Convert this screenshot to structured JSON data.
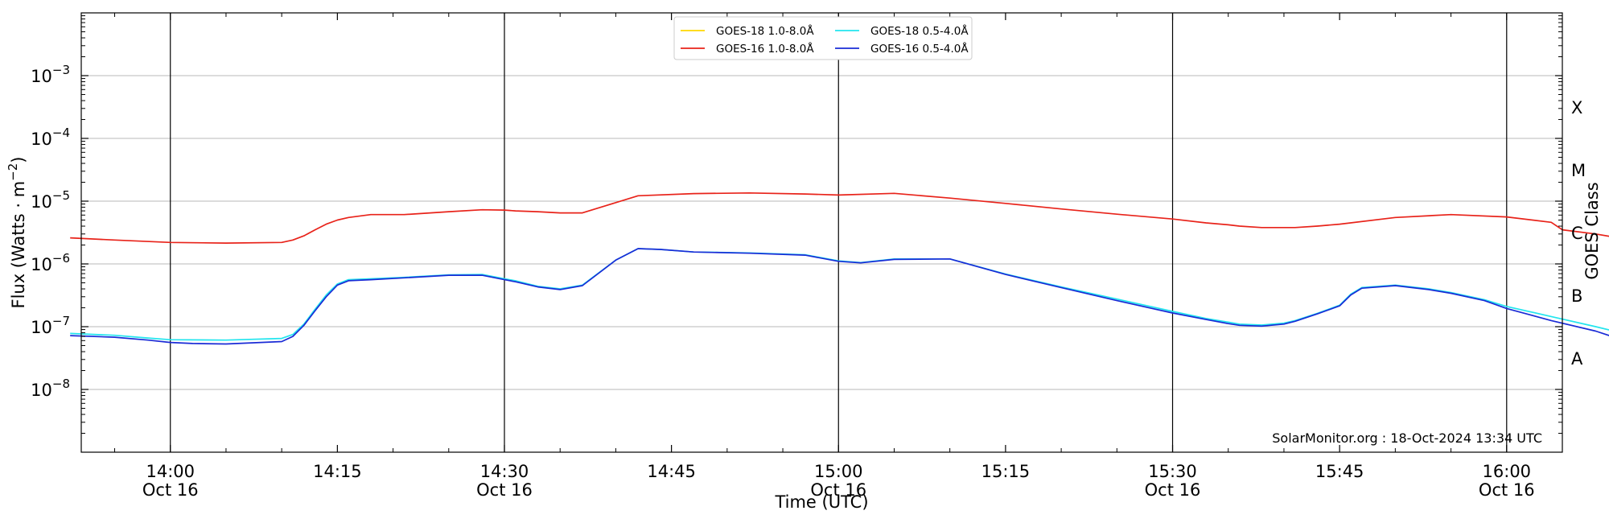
{
  "chart_data": {
    "type": "line",
    "xlabel": "Time (UTC)",
    "ylabel": "Flux (Watts · m⁻²)",
    "right_label": "GOES Class",
    "yscale": "log",
    "xlim": [
      "13:52",
      "16:05"
    ],
    "ylim": [
      1e-09,
      0.01
    ],
    "grid": "horizontal",
    "legend_position": "top-center",
    "footer": "SolarMonitor.org : 18-Oct-2024 13:34 UTC",
    "x_ticks": [
      {
        "time": "14:00",
        "main": "14:00",
        "sub": "Oct 16",
        "major": true
      },
      {
        "time": "14:15",
        "main": "14:15",
        "sub": "",
        "major": false
      },
      {
        "time": "14:30",
        "main": "14:30",
        "sub": "Oct 16",
        "major": true
      },
      {
        "time": "14:45",
        "main": "14:45",
        "sub": "",
        "major": false
      },
      {
        "time": "15:00",
        "main": "15:00",
        "sub": "Oct 16",
        "major": true
      },
      {
        "time": "15:15",
        "main": "15:15",
        "sub": "",
        "major": false
      },
      {
        "time": "15:30",
        "main": "15:30",
        "sub": "Oct 16",
        "major": true
      },
      {
        "time": "15:45",
        "main": "15:45",
        "sub": "",
        "major": false
      },
      {
        "time": "16:00",
        "main": "16:00",
        "sub": "Oct 16",
        "major": true
      }
    ],
    "y_ticks": [
      {
        "exp": -3,
        "label_base": "10",
        "label_exp": "−3"
      },
      {
        "exp": -4,
        "label_base": "10",
        "label_exp": "−4"
      },
      {
        "exp": -5,
        "label_base": "10",
        "label_exp": "−5"
      },
      {
        "exp": -6,
        "label_base": "10",
        "label_exp": "−6"
      },
      {
        "exp": -7,
        "label_base": "10",
        "label_exp": "−7"
      },
      {
        "exp": -8,
        "label_base": "10",
        "label_exp": "−8"
      }
    ],
    "goes_classes": [
      {
        "label": "X",
        "exp": -3.5
      },
      {
        "label": "M",
        "exp": -4.5
      },
      {
        "label": "C",
        "exp": -5.5
      },
      {
        "label": "B",
        "exp": -6.5
      },
      {
        "label": "A",
        "exp": -7.5
      }
    ],
    "series": [
      {
        "name": "GOES-18 1.0-8.0Å",
        "color": "#ffd700",
        "x": [],
        "y": []
      },
      {
        "name": "GOES-16 1.0-8.0Å",
        "color": "#e8231a",
        "x": [
          -9,
          -5,
          0,
          5,
          10,
          11,
          12,
          13,
          14,
          15,
          16,
          18,
          21,
          25,
          28,
          30,
          31,
          33,
          35,
          37,
          42,
          47,
          52,
          57,
          60,
          65,
          70,
          75,
          80,
          85,
          90,
          93,
          95,
          96,
          98,
          101,
          103,
          105,
          110,
          115,
          120,
          124,
          125,
          128,
          130,
          133
        ],
        "y": [
          2.6e-06,
          2.4e-06,
          2.2e-06,
          2.15e-06,
          2.2e-06,
          2.4e-06,
          2.8e-06,
          3.5e-06,
          4.3e-06,
          5e-06,
          5.5e-06,
          6.1e-06,
          6.1e-06,
          6.8e-06,
          7.3e-06,
          7.2e-06,
          7e-06,
          6.8e-06,
          6.5e-06,
          6.5e-06,
          1.22e-05,
          1.32e-05,
          1.35e-05,
          1.3e-05,
          1.25e-05,
          1.33e-05,
          1.12e-05,
          9.2e-06,
          7.5e-06,
          6.2e-06,
          5.2e-06,
          4.5e-06,
          4.2e-06,
          4e-06,
          3.8e-06,
          3.8e-06,
          4e-06,
          4.3e-06,
          5.5e-06,
          6.1e-06,
          5.6e-06,
          4.6e-06,
          3.5e-06,
          3e-06,
          2.6e-06,
          2.5e-06
        ]
      },
      {
        "name": "GOES-18 0.5-4.0Å",
        "color": "#22e5ee",
        "x": [
          -9,
          -5,
          -2,
          0,
          5,
          10,
          11,
          12,
          13,
          14,
          15,
          16,
          18,
          21,
          25,
          28,
          30,
          31,
          33,
          35,
          37,
          40,
          42,
          44,
          47,
          52,
          57,
          60,
          62,
          65,
          70,
          75,
          80,
          85,
          90,
          93,
          95,
          96,
          98,
          100,
          101,
          103,
          105,
          106,
          107,
          110,
          113,
          115,
          118,
          120,
          124,
          128,
          130,
          133
        ],
        "y": [
          7.8e-08,
          7.3e-08,
          6.6e-08,
          6.2e-08,
          6.1e-08,
          6.5e-08,
          7.5e-08,
          1.1e-07,
          1.9e-07,
          3.2e-07,
          4.8e-07,
          5.6e-07,
          5.8e-07,
          6.1e-07,
          6.7e-07,
          6.8e-07,
          5.8e-07,
          5.4e-07,
          4.4e-07,
          4e-07,
          4.6e-07,
          1.15e-06,
          1.75e-06,
          1.7e-06,
          1.55e-06,
          1.5e-06,
          1.4e-06,
          1.12e-06,
          1.05e-06,
          1.2e-06,
          1.2e-06,
          6.9e-07,
          4.3e-07,
          2.75e-07,
          1.75e-07,
          1.35e-07,
          1.18e-07,
          1.1e-07,
          1.06e-07,
          1.14e-07,
          1.25e-07,
          1.63e-07,
          2.2e-07,
          3.3e-07,
          4.2e-07,
          4.6e-07,
          4e-07,
          3.5e-07,
          2.7e-07,
          2.1e-07,
          1.45e-07,
          1e-07,
          8.2e-08,
          6.8e-08
        ]
      },
      {
        "name": "GOES-16 0.5-4.0Å",
        "color": "#1a2bd6",
        "x": [
          -9,
          -5,
          -2,
          0,
          2,
          5,
          10,
          11,
          12,
          13,
          14,
          15,
          16,
          18,
          21,
          25,
          28,
          30,
          31,
          33,
          35,
          37,
          40,
          42,
          44,
          47,
          52,
          57,
          60,
          62,
          65,
          70,
          75,
          80,
          85,
          90,
          93,
          95,
          96,
          98,
          100,
          101,
          103,
          105,
          106,
          107,
          110,
          113,
          115,
          118,
          120,
          124,
          128,
          130,
          133
        ],
        "y": [
          7.2e-08,
          6.8e-08,
          6.1e-08,
          5.6e-08,
          5.4e-08,
          5.3e-08,
          5.8e-08,
          7e-08,
          1.05e-07,
          1.8e-07,
          3e-07,
          4.6e-07,
          5.4e-07,
          5.6e-07,
          6e-07,
          6.6e-07,
          6.6e-07,
          5.6e-07,
          5.2e-07,
          4.3e-07,
          3.9e-07,
          4.5e-07,
          1.15e-06,
          1.75e-06,
          1.7e-06,
          1.55e-06,
          1.48e-06,
          1.38e-06,
          1.1e-06,
          1.04e-06,
          1.18e-06,
          1.2e-06,
          6.8e-07,
          4.2e-07,
          2.6e-07,
          1.65e-07,
          1.3e-07,
          1.12e-07,
          1.05e-07,
          1.02e-07,
          1.1e-07,
          1.22e-07,
          1.6e-07,
          2.15e-07,
          3.2e-07,
          4.1e-07,
          4.5e-07,
          3.9e-07,
          3.4e-07,
          2.6e-07,
          1.95e-07,
          1.25e-07,
          8.5e-08,
          6.5e-08,
          5.2e-08
        ]
      }
    ]
  }
}
